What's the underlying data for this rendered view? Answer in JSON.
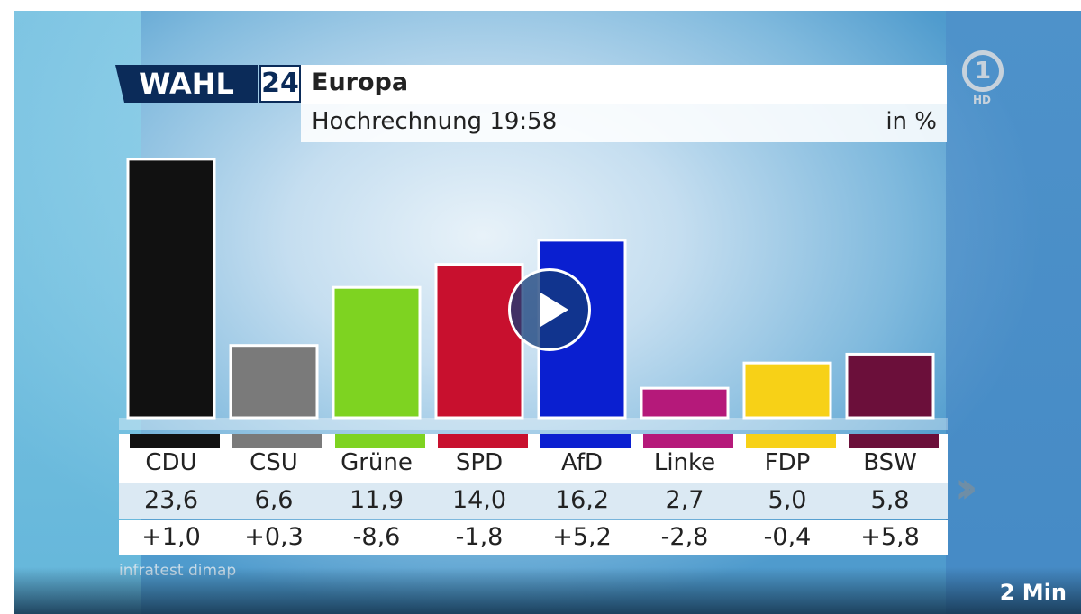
{
  "header": {
    "logo_word": "WAHL",
    "logo_number": "24",
    "title": "Europa",
    "subtitle": "Hochrechnung 19:58",
    "unit": "in %"
  },
  "chart_data": {
    "type": "bar",
    "categories": [
      "CDU",
      "CSU",
      "Grüne",
      "SPD",
      "AfD",
      "Linke",
      "FDP",
      "BSW"
    ],
    "values": [
      23.6,
      6.6,
      11.9,
      14.0,
      16.2,
      2.7,
      5.0,
      5.8
    ],
    "value_labels": [
      "23,6",
      "6,6",
      "11,9",
      "14,0",
      "16,2",
      "2,7",
      "5,0",
      "5,8"
    ],
    "change_labels": [
      "+1,0",
      "+0,3",
      "-8,6",
      "-1,8",
      "+5,2",
      "-2,8",
      "-0,4",
      "+5,8"
    ],
    "colors": [
      "#111111",
      "#7a7a7a",
      "#7ed321",
      "#c8102e",
      "#0a1fd0",
      "#b5197a",
      "#f7d117",
      "#6b0f3a"
    ],
    "ylim": [
      0,
      24
    ]
  },
  "footer": {
    "source": "infratest dimap",
    "duration": "2 Min"
  },
  "broadcaster": {
    "logo": "1",
    "hd": "HD"
  },
  "icons": {
    "play": "play-icon",
    "next": "double-chevron-right-icon"
  }
}
